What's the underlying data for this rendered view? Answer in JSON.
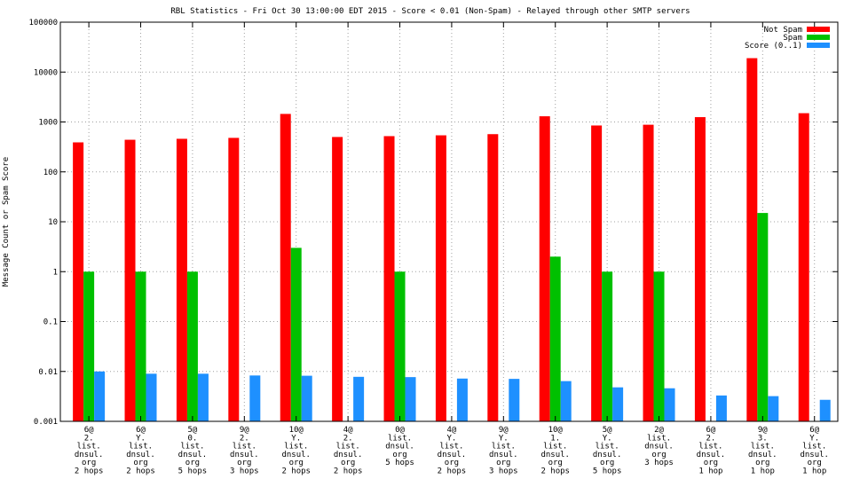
{
  "chart_data": {
    "type": "bar",
    "title": "RBL Statistics - Fri Oct 30 13:00:00 EDT 2015 - Score < 0.01 (Non-Spam) - Relayed through other SMTP servers",
    "ylabel": "Message Count or Spam Score",
    "xlabel": "",
    "yscale": "log",
    "ylim": [
      0.001,
      100000
    ],
    "yticks": [
      {
        "value": 100000,
        "label": "100000"
      },
      {
        "value": 10000,
        "label": "10000"
      },
      {
        "value": 1000,
        "label": "1000"
      },
      {
        "value": 100,
        "label": "100"
      },
      {
        "value": 10,
        "label": "10"
      },
      {
        "value": 1,
        "label": "1"
      },
      {
        "value": 0.1,
        "label": "0.1"
      },
      {
        "value": 0.01,
        "label": "0.01"
      },
      {
        "value": 0.001,
        "label": "0.001"
      }
    ],
    "grid": true,
    "legend_position": "top-right",
    "categories": [
      [
        "6@",
        "2.",
        "list.",
        "dnsul.",
        "org",
        "2 hops"
      ],
      [
        "6@",
        "Y.",
        "list.",
        "dnsul.",
        "org",
        "2 hops"
      ],
      [
        "5@",
        "0.",
        "list.",
        "dnsul.",
        "org",
        "5 hops"
      ],
      [
        "9@",
        "2.",
        "list.",
        "dnsul.",
        "org",
        "3 hops"
      ],
      [
        "10@",
        "Y.",
        "list.",
        "dnsul.",
        "org",
        "2 hops"
      ],
      [
        "4@",
        "2.",
        "list.",
        "dnsul.",
        "org",
        "2 hops"
      ],
      [
        "0@",
        "list.",
        "dnsul.",
        "org",
        "5 hops"
      ],
      [
        "4@",
        "Y.",
        "list.",
        "dnsul.",
        "org",
        "2 hops"
      ],
      [
        "9@",
        "Y.",
        "list.",
        "dnsul.",
        "org",
        "3 hops"
      ],
      [
        "10@",
        "1.",
        "list.",
        "dnsul.",
        "org",
        "2 hops"
      ],
      [
        "5@",
        "Y.",
        "list.",
        "dnsul.",
        "org",
        "5 hops"
      ],
      [
        "2@",
        "list.",
        "dnsul.",
        "org",
        "3 hops"
      ],
      [
        "6@",
        "2.",
        "list.",
        "dnsul.",
        "org",
        "1 hop"
      ],
      [
        "9@",
        "3.",
        "list.",
        "dnsul.",
        "org",
        "1 hop"
      ],
      [
        "6@",
        "Y.",
        "list.",
        "dnsul.",
        "org",
        "1 hop"
      ]
    ],
    "series": [
      {
        "name": "Not Spam",
        "color": "#ff0000",
        "values": [
          390,
          440,
          460,
          480,
          1450,
          500,
          520,
          540,
          570,
          1300,
          850,
          880,
          1250,
          19000,
          1500
        ]
      },
      {
        "name": "Spam",
        "color": "#00c000",
        "values": [
          1,
          1,
          1,
          null,
          3,
          null,
          1,
          null,
          null,
          2,
          1,
          1,
          null,
          15,
          null
        ]
      },
      {
        "name": "Score (0..1)",
        "color": "#1e90ff",
        "values": [
          0.01,
          0.009,
          0.009,
          0.0083,
          0.0082,
          0.0078,
          0.0077,
          0.0072,
          0.0071,
          0.0064,
          0.0048,
          0.0046,
          0.0033,
          0.0032,
          0.0027
        ]
      }
    ]
  }
}
